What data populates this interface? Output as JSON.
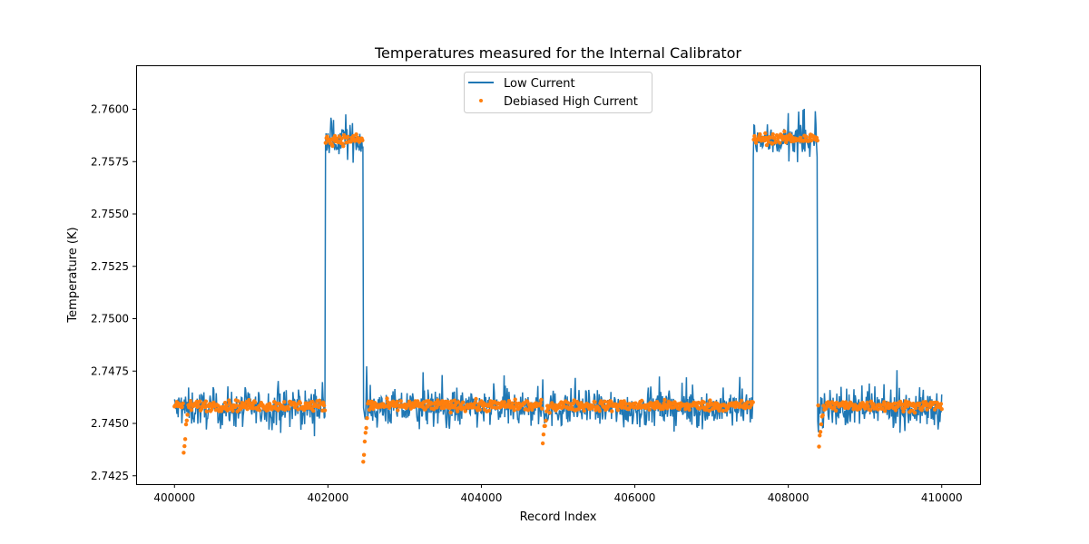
{
  "chart_data": {
    "type": "line",
    "title": "Temperatures measured for the Internal Calibrator",
    "xlabel": "Record Index",
    "ylabel": "Temperature (K)",
    "xlim": [
      399500,
      410500
    ],
    "ylim": [
      2.7421,
      2.7621
    ],
    "xticks": [
      400000,
      402000,
      404000,
      406000,
      408000,
      410000
    ],
    "xtick_labels": [
      "400000",
      "402000",
      "404000",
      "406000",
      "408000",
      "410000"
    ],
    "yticks": [
      2.7425,
      2.745,
      2.7475,
      2.75,
      2.7525,
      2.755,
      2.7575,
      2.76
    ],
    "ytick_labels": [
      "2.7425",
      "2.7450",
      "2.7475",
      "2.7500",
      "2.7525",
      "2.7550",
      "2.7575",
      "2.7600"
    ],
    "legend_placement": "upper-center",
    "grid": false,
    "series": [
      {
        "name": "Low Current",
        "kind": "line",
        "color": "#1f77b4",
        "segments": [
          {
            "start": 400000,
            "end": 401960,
            "mean": 2.7457,
            "noise": 0.0011
          },
          {
            "start": 401960,
            "end": 402460,
            "mean": 2.7585,
            "noise": 0.001
          },
          {
            "start": 402460,
            "end": 407540,
            "mean": 2.7457,
            "noise": 0.0011
          },
          {
            "start": 407540,
            "end": 408380,
            "mean": 2.7585,
            "noise": 0.001
          },
          {
            "start": 408380,
            "end": 410000,
            "mean": 2.7457,
            "noise": 0.0011
          }
        ]
      },
      {
        "name": "Debiased High Current",
        "kind": "scatter",
        "color": "#ff7f0e",
        "segments": [
          {
            "start": 400000,
            "end": 401960,
            "mean": 2.74585,
            "noise": 0.00025
          },
          {
            "start": 401960,
            "end": 402460,
            "mean": 2.75855,
            "noise": 0.00025
          },
          {
            "start": 402460,
            "end": 407540,
            "mean": 2.74585,
            "noise": 0.00025
          },
          {
            "start": 407540,
            "end": 408380,
            "mean": 2.7586,
            "noise": 0.00025
          },
          {
            "start": 408380,
            "end": 410000,
            "mean": 2.74585,
            "noise": 0.00025
          }
        ],
        "dips": [
          {
            "x": 400120,
            "min": 2.7437
          },
          {
            "x": 402460,
            "min": 2.7431
          },
          {
            "x": 404800,
            "min": 2.7441
          },
          {
            "x": 408400,
            "min": 2.744
          }
        ]
      }
    ]
  }
}
